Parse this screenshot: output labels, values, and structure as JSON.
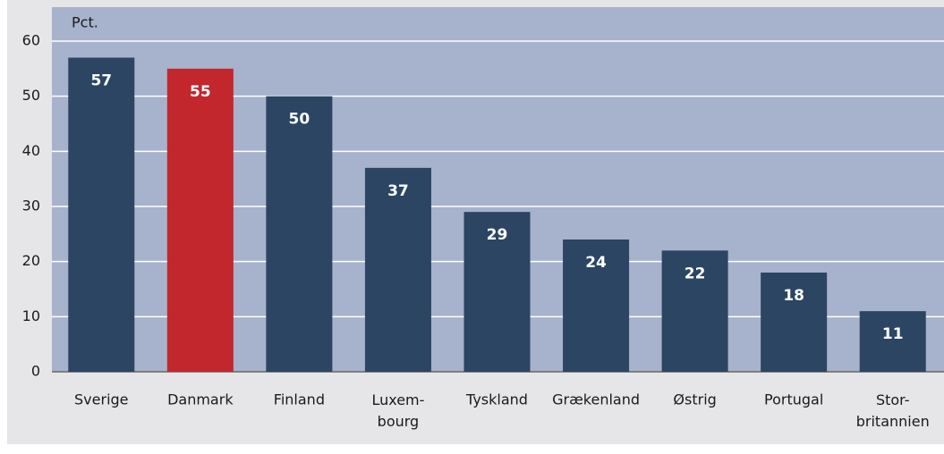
{
  "chart_data": {
    "type": "bar",
    "y_unit_label": "Pct.",
    "categories": [
      "Sverige",
      "Danmark",
      "Finland",
      "Luxem-\nbourg",
      "Tyskland",
      "Grækenland",
      "Østrig",
      "Portugal",
      "Stor-\nbritannien"
    ],
    "values": [
      57,
      55,
      50,
      37,
      29,
      24,
      22,
      18,
      11
    ],
    "colors": [
      "#2b4562",
      "#c1272d",
      "#2b4562",
      "#2b4562",
      "#2b4562",
      "#2b4562",
      "#2b4562",
      "#2b4562",
      "#2b4562"
    ],
    "ylim": [
      0,
      60
    ],
    "yticks": [
      0,
      10,
      20,
      30,
      40,
      50,
      60
    ],
    "grid": true
  }
}
